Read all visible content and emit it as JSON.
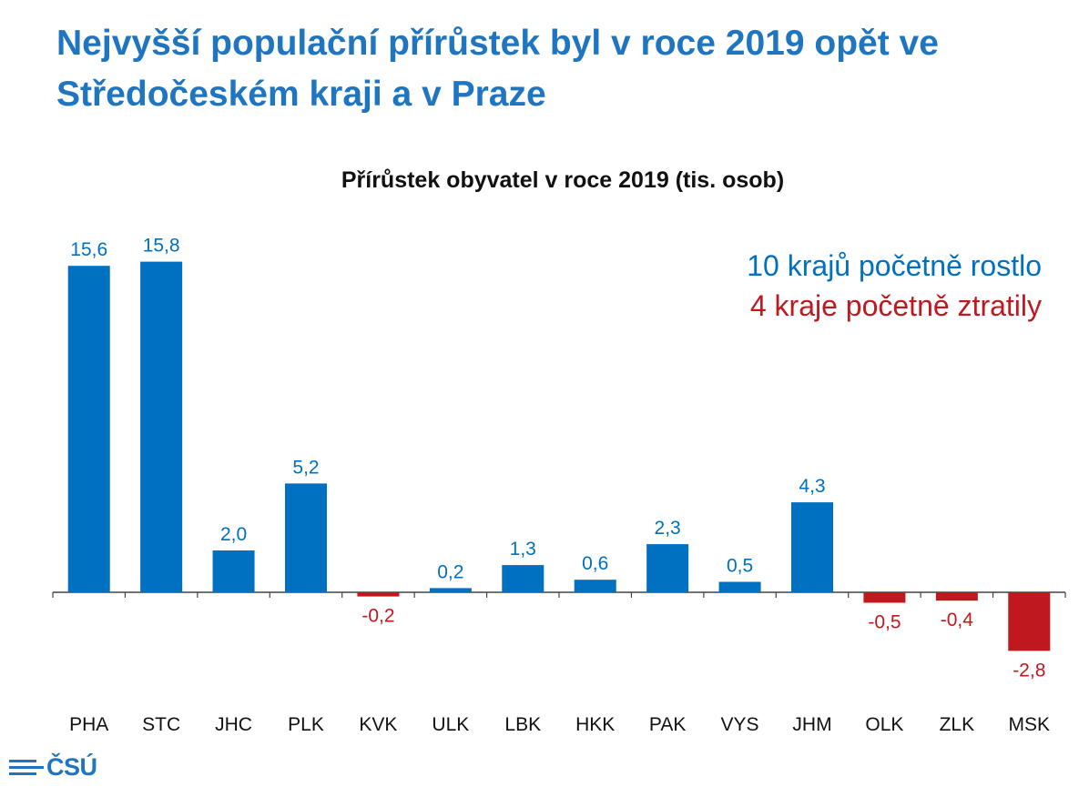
{
  "headline": "Nejvyšší populační přírůstek byl v roce 2019 opět ve Středočeském kraji a v Praze",
  "notes": {
    "grew": "10 krajů početně rostlo",
    "declined": "4 kraje početně ztratily"
  },
  "logo": {
    "text": "ČSÚ",
    "icon": "csu-logo-lines"
  },
  "colors": {
    "positive": "#0070c0",
    "negative": "#c0181f",
    "headline": "#1f75bf"
  },
  "chart_data": {
    "type": "bar",
    "title": "Přírůstek obyvatel v roce 2019 (tis. osob)",
    "xlabel": "",
    "ylabel": "",
    "ylim": [
      -3.5,
      16.5
    ],
    "grid": false,
    "categories": [
      "PHA",
      "STC",
      "JHC",
      "PLK",
      "KVK",
      "ULK",
      "LBK",
      "HKK",
      "PAK",
      "VYS",
      "JHM",
      "OLK",
      "ZLK",
      "MSK"
    ],
    "values": [
      15.6,
      15.8,
      2.0,
      5.2,
      -0.2,
      0.2,
      1.3,
      0.6,
      2.3,
      0.5,
      4.3,
      -0.5,
      -0.4,
      -2.8
    ],
    "data_labels": [
      "15,6",
      "15,8",
      "2,0",
      "5,2",
      "-0,2",
      "0,2",
      "1,3",
      "0,6",
      "2,3",
      "0,5",
      "4,3",
      "-0,5",
      "-0,4",
      "-2,8"
    ]
  }
}
